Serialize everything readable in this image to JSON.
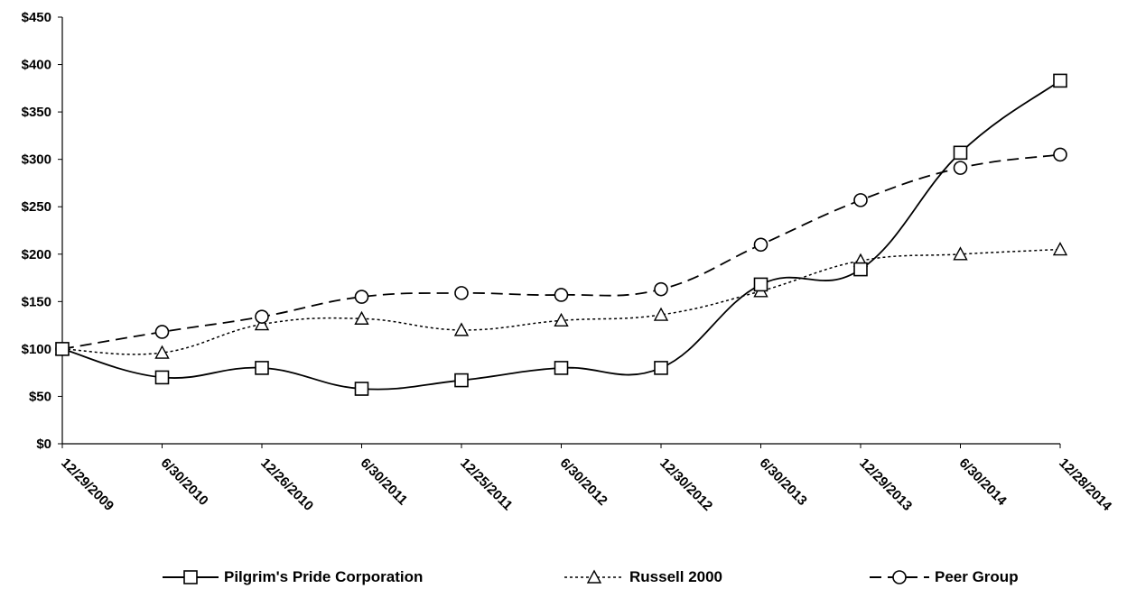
{
  "chart_data": {
    "type": "line",
    "title": "",
    "xlabel": "",
    "ylabel": "",
    "categories": [
      "12/29/2009",
      "6/30/2010",
      "12/26/2010",
      "6/30/2011",
      "12/25/2011",
      "6/30/2012",
      "12/30/2012",
      "6/30/2013",
      "12/29/2013",
      "6/30/2014",
      "12/28/2014"
    ],
    "ylim": [
      0,
      450
    ],
    "yticks": [
      0,
      50,
      100,
      150,
      200,
      250,
      300,
      350,
      400,
      450
    ],
    "ytick_labels": [
      "$0",
      "$50",
      "$100",
      "$150",
      "$200",
      "$250",
      "$300",
      "$350",
      "$400",
      "$450"
    ],
    "grid": false,
    "legend_position": "bottom",
    "series": [
      {
        "name": "Pilgrim's Pride Corporation",
        "marker": "square",
        "dash": "solid",
        "values": [
          100,
          70,
          80,
          58,
          67,
          80,
          80,
          168,
          184,
          307,
          383
        ]
      },
      {
        "name": "Russell 2000",
        "marker": "triangle",
        "dash": "dotted",
        "values": [
          100,
          96,
          126,
          132,
          120,
          130,
          136,
          161,
          193,
          200,
          205
        ]
      },
      {
        "name": "Peer Group",
        "marker": "circle",
        "dash": "dashed",
        "values": [
          100,
          118,
          134,
          155,
          159,
          157,
          163,
          210,
          257,
          291,
          305
        ]
      }
    ]
  }
}
